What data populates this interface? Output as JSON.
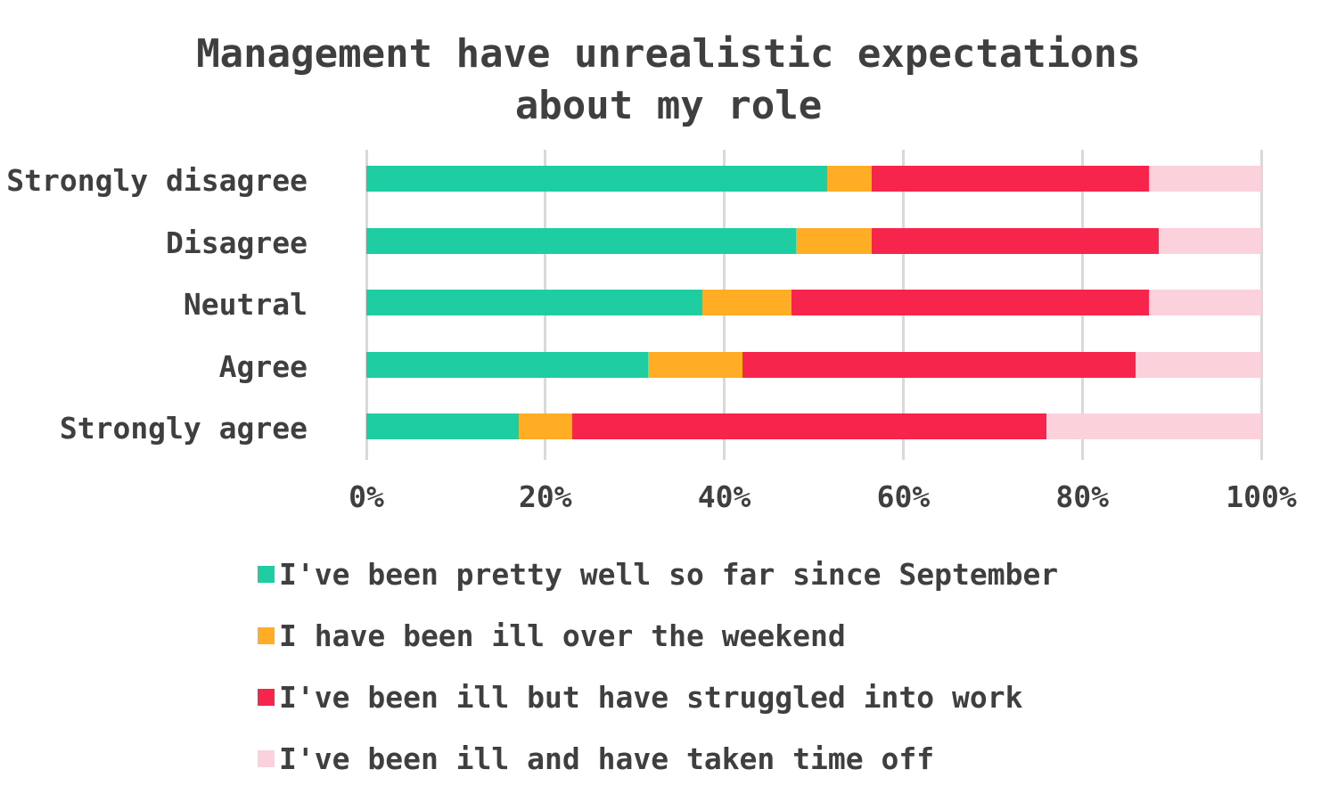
{
  "title": {
    "line1": "Management have unrealistic expectations",
    "line2": "about my role"
  },
  "chart_data": {
    "type": "bar",
    "orientation": "horizontal",
    "stacked": true,
    "title": "Management have unrealistic expectations about my role",
    "categories": [
      "Strongly disagree",
      "Disagree",
      "Neutral",
      "Agree",
      "Strongly agree"
    ],
    "series": [
      {
        "name": "I've been pretty well so far since September",
        "color": "#1FCDA3",
        "values": [
          51.5,
          48,
          37.5,
          31.5,
          17
        ]
      },
      {
        "name": "I have been ill over the weekend",
        "color": "#FFAD24",
        "values": [
          5,
          8.5,
          10,
          10.5,
          6
        ]
      },
      {
        "name": "I've been ill but have struggled into work",
        "color": "#F7254B",
        "values": [
          31,
          32,
          40,
          44,
          53
        ]
      },
      {
        "name": "I've been ill and have taken time off",
        "color": "#FBD2DB",
        "values": [
          12.5,
          11.5,
          12.5,
          14,
          24
        ]
      }
    ],
    "x_ticks": [
      "0%",
      "20%",
      "40%",
      "60%",
      "80%",
      "100%"
    ],
    "xlim": [
      0,
      100
    ],
    "unit": "percent",
    "xlabel": "",
    "ylabel": "",
    "grid": "vertical",
    "legend_position": "bottom"
  },
  "colors": {
    "text": "#3F3F3F",
    "gridline": "#D9D9D9",
    "background": "#FFFFFF"
  }
}
